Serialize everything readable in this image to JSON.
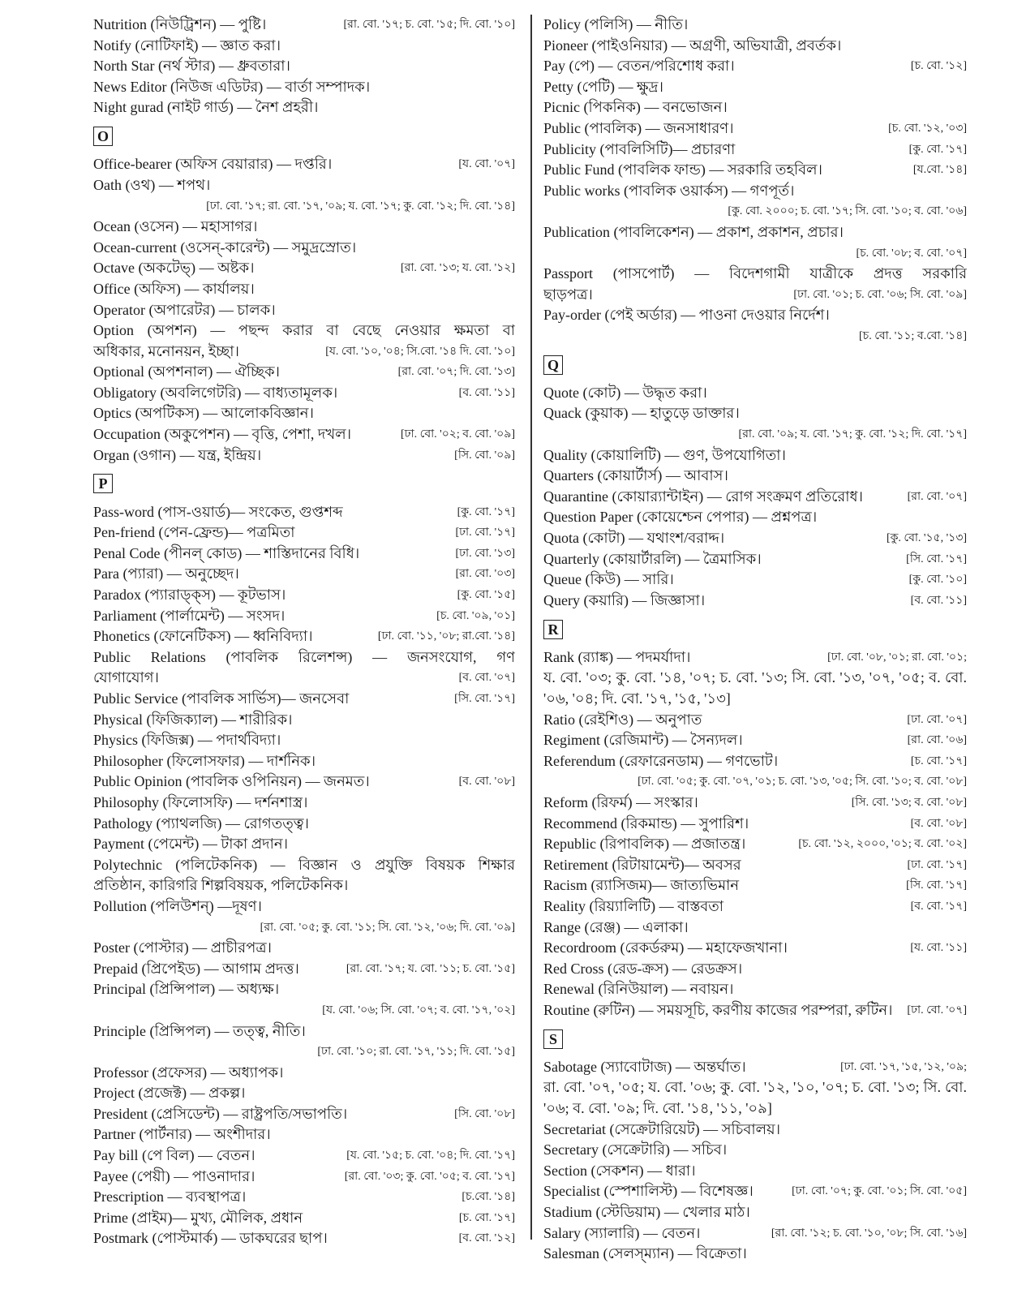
{
  "left_column": [
    {
      "type": "entry",
      "text": "Nutrition (নিউট্রিশন) — পুষ্টি।",
      "ref": "[রা. বো. '১৭; চ. বো. '১৫; দি. বো. '১০]"
    },
    {
      "type": "entry",
      "text": "Notify (নোটিফাই) — জ্ঞাত করা।"
    },
    {
      "type": "entry",
      "text": "North Star (নর্থ স্টার) — ধ্রুবতারা।"
    },
    {
      "type": "entry",
      "text": "News Editor (নিউজ এডিটর) — বার্তা সম্পাদক।"
    },
    {
      "type": "entry",
      "text": "Night gurad (নাইট গার্ড) — নৈশ প্রহরী।"
    },
    {
      "type": "header",
      "text": "O"
    },
    {
      "type": "entry",
      "text": "Office-bearer (অফিস বেয়ারার) — দপ্তরি।",
      "ref": "[য. বো. '০৭]"
    },
    {
      "type": "entry",
      "text": "Oath (ওথ) — শপথ।"
    },
    {
      "type": "ref",
      "ref": "[ঢা. বো. '১৭; রা. বো. '১৭, '০৯; য. বো. '১৭; কু. বো. '১২; দি. বো. '১৪]"
    },
    {
      "type": "entry",
      "text": "Ocean (ওসেন) — মহাসাগর।"
    },
    {
      "type": "entry",
      "text": "Ocean-current (ওসেন্‌-কারেন্ট) — সমুদ্রস্রোত।"
    },
    {
      "type": "entry",
      "text": "Octave (অকটেভ্‌) — অষ্টক।",
      "ref": "[রা. বো. '১৩; য. বো. '১২]"
    },
    {
      "type": "entry",
      "text": "Office (অফিস) — কার্যালয়।"
    },
    {
      "type": "entry",
      "text": "Operator (অপারেটর) — চালক।"
    },
    {
      "type": "justify",
      "text": "Option (অপশন) — পছন্দ করার বা বেছে নেওয়ার ক্ষমতা বা"
    },
    {
      "type": "entry",
      "text": "অধিকার, মনোনয়ন, ইচ্ছা।",
      "ref": "[য. বো. '১০, '০৪; সি.বো. '১৪ দি. বো. '১০]"
    },
    {
      "type": "entry",
      "text": "Optional (অপশনাল) — ঐচ্ছিক।",
      "ref": "[রা. বো. '০৭; দি. বো. '১৩]"
    },
    {
      "type": "entry",
      "text": "Obligatory (অবলিগেটরি) — বাধ্যতামূলক।",
      "ref": "[ব. বো. '১১]"
    },
    {
      "type": "entry",
      "text": "Optics (অপটিকস) — আলোকবিজ্ঞান।"
    },
    {
      "type": "entry",
      "text": "Occupation (অকুপেশন) — বৃত্তি, পেশা, দখল।",
      "ref": "[ঢা. বো. '০২; ব. বো. '০৯]"
    },
    {
      "type": "entry",
      "text": "Organ (ওগান) — যন্ত্র, ইন্দ্রিয়।",
      "ref": "[সি. বো. '০৯]"
    },
    {
      "type": "header",
      "text": "P"
    },
    {
      "type": "entry",
      "text": "Pass-word (পাস-ওয়ার্ড)— সংকেত, গুপ্তশব্দ",
      "ref": "[কু. বো. '১৭]"
    },
    {
      "type": "entry",
      "text": "Pen-friend (পেন-ফ্রেন্ড)— পত্রমিতা",
      "ref": "[ঢা. বো. '১৭]"
    },
    {
      "type": "entry",
      "text": "Penal Code (পীনল্‌ কোড) — শাস্তিদানের বিধি।",
      "ref": "[ঢা. বো. '১৩]"
    },
    {
      "type": "entry",
      "text": "Para (প্যারা) — অনুচ্ছেদ।",
      "ref": "[রা. বো. '০৩]"
    },
    {
      "type": "entry",
      "text": "Paradox (প্যারাড্‌ক্‌স) — কূটভাস।",
      "ref": "[কু. বো. '১৫]"
    },
    {
      "type": "entry",
      "text": "Parliament (পার্লামেন্ট) — সংসদ।",
      "ref": "[চ. বো. '০৯, '০১]"
    },
    {
      "type": "entry",
      "text": "Phonetics (ফোনেটিকস) — ধ্বনিবিদ্যা।",
      "ref": "[ঢা. বো. '১১, '০৮; রা.বো. '১৪]"
    },
    {
      "type": "justify",
      "text": "Public Relations (পাবলিক রিলেশন্স) — জনসংযোগ, গণ"
    },
    {
      "type": "entry",
      "text": "যোগাযোগ।",
      "ref": "[ব. বো. '০৭]"
    },
    {
      "type": "entry",
      "text": "Public Service (পাবলিক সার্ভিস)— জনসেবা",
      "ref": "[সি. বো. '১৭]"
    },
    {
      "type": "entry",
      "text": "Physical (ফিজিক্যাল) — শারীরিক।"
    },
    {
      "type": "entry",
      "text": "Physics (ফিজিক্স) — পদার্থবিদ্যা।"
    },
    {
      "type": "entry",
      "text": "Philosopher (ফিলোসফার) — দার্শনিক।"
    },
    {
      "type": "entry",
      "text": "Public Opinion (পাবলিক ওপিনিয়ন) — জনমত।",
      "ref": "[ব. বো. '০৮]"
    },
    {
      "type": "entry",
      "text": "Philosophy (ফিলোসফি) — দর্শনশাস্ত্র।"
    },
    {
      "type": "entry",
      "text": "Pathology (প্যাথলজি) — রোগতত্ত্ব।"
    },
    {
      "type": "entry",
      "text": "Payment (পেমেন্ট) — টাকা প্রদান।"
    },
    {
      "type": "justify",
      "text": "Polytechnic (পলিটেকনিক) — বিজ্ঞান ও প্রযুক্তি বিষয়ক শিক্ষার"
    },
    {
      "type": "entry",
      "text": "প্রতিষ্ঠান, কারিগরি শিল্পবিষয়ক, পলিটেকনিক।"
    },
    {
      "type": "entry",
      "text": "Pollution (পলিউশন্‌) —দূষণ।"
    },
    {
      "type": "ref",
      "ref": "[রা. বো. '০৫; কু. বো. '১১; সি. বো. '১২, '০৬; দি. বো. '০৯]"
    },
    {
      "type": "entry",
      "text": "Poster (পোস্টার) — প্রাচীরপত্র।"
    },
    {
      "type": "entry",
      "text": "Prepaid (প্রিপেইড) — আগাম প্রদত্ত।",
      "ref": "[রা. বো. '১৭; য. বো. '১১; চ. বো. '১৫]"
    },
    {
      "type": "entry",
      "text": "Principal (প্রিন্সিপাল) — অধ্যক্ষ।"
    },
    {
      "type": "ref",
      "ref": "[য. বো. '০৬; সি. বো. '০৭; ব. বো. '১৭, '০২]"
    },
    {
      "type": "entry",
      "text": "Principle (প্রিন্সিপল) — তত্ত্ব, নীতি।"
    },
    {
      "type": "ref",
      "ref": "[ঢা. বো. '১০; রা. বো. '১৭, '১১; দি. বো. '১৫]"
    },
    {
      "type": "entry",
      "text": "Professor (প্রফেসর) — অধ্যাপক।"
    },
    {
      "type": "entry",
      "text": "Project (প্রজেক্ট) — প্রকল্প।"
    },
    {
      "type": "entry",
      "text": "President (প্রেসিডেন্ট) — রাষ্ট্রপতি/সভাপতি।",
      "ref": "[সি. বো. '০৮]"
    },
    {
      "type": "entry",
      "text": "Partner (পার্টনার) — অংশীদার।"
    },
    {
      "type": "entry",
      "text": "Pay bill (পে বিল) — বেতন।",
      "ref": "[য. বো. '১৫; চ. বো. '০৪; দি. বো. '১৭]"
    },
    {
      "type": "entry",
      "text": "Payee (পেয়ী) — পাওনাদার।",
      "ref": "[রা. বো. '০৩; কু. বো. '০৫; ব. বো. '১৭]"
    },
    {
      "type": "entry",
      "text": "Prescription — ব্যবস্থাপত্র।",
      "ref": "[চ.বো. '১৪]"
    },
    {
      "type": "entry",
      "text": "Prime (প্রাইম)— মুখ্য, মৌলিক, প্রধান",
      "ref": "[চ. বো. '১৭]"
    },
    {
      "type": "entry",
      "text": "Postmark (পোস্টমার্ক) — ডাকঘরের ছাপ।",
      "ref": "[ব. বো. '১২]"
    }
  ],
  "right_column": [
    {
      "type": "entry",
      "text": "Policy (পলিসি) — নীতি।"
    },
    {
      "type": "entry",
      "text": "Pioneer (পাইওনিয়ার) — অগ্রণী, অভিযাত্রী, প্রবর্তক।"
    },
    {
      "type": "entry",
      "text": "Pay (পে) — বেতন/পরিশোধ করা।",
      "ref": "[চ. বো. '১২]"
    },
    {
      "type": "entry",
      "text": "Petty (পেটি) — ক্ষুদ্র।"
    },
    {
      "type": "entry",
      "text": "Picnic (পিকনিক) — বনভোজন।"
    },
    {
      "type": "entry",
      "text": "Public (পাবলিক) — জনসাধারণ।",
      "ref": "[চ. বো. '১২, '০৩]"
    },
    {
      "type": "entry",
      "text": "Publicity (পাবলিসিটি)— প্রচারণা",
      "ref": "[কু. বো. '১৭]"
    },
    {
      "type": "entry",
      "text": "Public Fund (পাবলিক ফান্ড) — সরকারি তহবিল।",
      "ref": "[য.বো. '১৪]"
    },
    {
      "type": "entry",
      "text": "Public works (পাবলিক ওয়ার্কস) — গণপূর্ত।"
    },
    {
      "type": "ref",
      "ref": "[কু. বো. ২০০০; চ. বো. '১৭; সি. বো. '১০; ব. বো. '০৬]"
    },
    {
      "type": "entry",
      "text": "Publication (পাবলিকেশন) — প্রকাশ, প্রকাশন, প্রচার।"
    },
    {
      "type": "ref",
      "ref": "[চ. বো. '০৮; ব. বো. '০৭]"
    },
    {
      "type": "justify",
      "text": "Passport (পাসপোর্ট) — বিদেশগামী যাত্রীকে প্রদত্ত সরকারি"
    },
    {
      "type": "entry",
      "text": "ছাড়পত্র।",
      "ref": "[ঢা. বো. '০১; চ. বো. '০৬; সি. বো. '০৯]"
    },
    {
      "type": "entry",
      "text": "Pay-order (পেই অর্ডার) — পাওনা দেওয়ার নির্দেশ।"
    },
    {
      "type": "ref",
      "ref": "[চ. বো. '১১; ব.বো. '১৪]"
    },
    {
      "type": "header",
      "text": "Q"
    },
    {
      "type": "entry",
      "text": "Quote (কোট) — উদ্ধৃত করা।"
    },
    {
      "type": "entry",
      "text": "Quack (কুয়াক) — হাতুড়ে ডাক্তার।"
    },
    {
      "type": "ref",
      "ref": "[রা. বো. '০৯; য. বো. '১৭; কু. বো. '১২; দি. বো. '১৭]"
    },
    {
      "type": "entry",
      "text": "Quality (কোয়ালিটি) — গুণ, উপযোগিতা।"
    },
    {
      "type": "entry",
      "text": "Quarters (কোয়ার্টার্স) — আবাস।"
    },
    {
      "type": "entry",
      "text": "Quarantine (কোয়ার‍্যান্টাইন) — রোগ সংক্রমণ প্রতিরোধ।",
      "ref": "[রা. বো. '০৭]"
    },
    {
      "type": "entry",
      "text": "Question Paper (কোয়েশ্চেন পেপার) — প্রশ্নপত্র।"
    },
    {
      "type": "entry",
      "text": "Quota (কোটা) — যথাংশ/বরাদ্দ।",
      "ref": "[কু. বো. '১৫, '১৩]"
    },
    {
      "type": "entry",
      "text": "Quarterly (কোয়ার্টারলি) — ত্রৈমাসিক।",
      "ref": "[সি. বো. '১৭]"
    },
    {
      "type": "entry",
      "text": "Queue (কিউ) — সারি।",
      "ref": "[কু. বো. '১০]"
    },
    {
      "type": "entry",
      "text": "Query (কয়ারি) — জিজ্ঞাসা।",
      "ref": "[ব. বো. '১১]"
    },
    {
      "type": "header",
      "text": "R"
    },
    {
      "type": "entry",
      "text": "Rank (র‍্যাঙ্ক) — পদমর্যাদা।",
      "ref": "[ঢা. বো. '০৮, '০১; রা. বো. '০১;"
    },
    {
      "type": "justify",
      "text": "য. বো. '০৩; কু. বো. '১৪, '০৭; চ. বো. '১৩; সি. বো. '১৩, '০৭, '০৫; ব. বো."
    },
    {
      "type": "entry",
      "text": "'০৬, '০৪; দি. বো. '১৭, '১৫, '১৩]"
    },
    {
      "type": "entry",
      "text": "Ratio (রেইশিও) — অনুপাত",
      "ref": "[ঢা. বো. '০৭]"
    },
    {
      "type": "entry",
      "text": "Regiment (রেজিমান্ট) — সৈন্যদল।",
      "ref": "[রা. বো. '০৬]"
    },
    {
      "type": "entry",
      "text": "Referendum (রেফারেনডাম) — গণভোট।",
      "ref": "[চ. বো. '১৭]"
    },
    {
      "type": "ref",
      "ref": "[ঢা. বো. '০৫; কু. বো. '০৭, '০১; চ. বো. '১৩, '০৫; সি. বো. '১০; ব. বো. '০৮]"
    },
    {
      "type": "entry",
      "text": "Reform (রিফর্ম) — সংস্কার।",
      "ref": "[সি. বো. '১৩; ব. বো. '০৮]"
    },
    {
      "type": "entry",
      "text": "Recommend (রিকমান্ড) — সুপারিশ।",
      "ref": "[ব. বো. '০৮]"
    },
    {
      "type": "entry",
      "text": "Republic (রিপাবলিক) — প্রজাতন্ত্র।",
      "ref": "[চ. বো. '১২, ২০০০, '০১; ব. বো. '০২]"
    },
    {
      "type": "entry",
      "text": "Retirement (রিটায়ামেন্ট)— অবসর",
      "ref": "[ঢা. বো. '১৭]"
    },
    {
      "type": "entry",
      "text": "Racism (র‍্যাসিজম)— জাত্যভিমান",
      "ref": "[সি. বো. '১৭]"
    },
    {
      "type": "entry",
      "text": "Reality (রিয়্যালিটি) — বাস্তবতা",
      "ref": "[ব. বো. '১৭]"
    },
    {
      "type": "entry",
      "text": "Range (রেঞ্জ) — এলাকা।"
    },
    {
      "type": "entry",
      "text": "Recordroom (রেকর্ডরুম) — মহাফেজখানা।",
      "ref": "[য. বো. '১১]"
    },
    {
      "type": "entry",
      "text": "Red Cross (রেড-ক্রস) — রেডক্রস।"
    },
    {
      "type": "entry",
      "text": "Renewal (রিনিউয়াল) — নবায়ন।"
    },
    {
      "type": "entry",
      "text": "Routine (রুটিন) — সময়সূচি, করণীয় কাজের পরম্পরা, রুটিন।",
      "ref": "[ঢা. বো. '০৭]"
    },
    {
      "type": "header",
      "text": "S"
    },
    {
      "type": "entry",
      "text": "Sabotage (স্যাবোটাজ) — অন্তর্ঘাত।",
      "ref": "[ঢা. বো. '১৭, '১৫, '১২, '০৯;"
    },
    {
      "type": "justify",
      "text": "রা. বো. '০৭, '০৫; য. বো. '০৬; কু. বো. '১২, '১০, '০৭; চ. বো. '১৩; সি. বো."
    },
    {
      "type": "entry",
      "text": "'০৬; ব. বো. '০৯; দি. বো. '১৪, '১১, '০৯]"
    },
    {
      "type": "entry",
      "text": "Secretariat (সেক্রেটারিয়েট) — সচিবালয়।"
    },
    {
      "type": "entry",
      "text": "Secretary (সেক্রেটারি) — সচিব।"
    },
    {
      "type": "entry",
      "text": "Section (সেকশন) — ধারা।"
    },
    {
      "type": "entry",
      "text": "Specialist (স্পেশালিস্ট) — বিশেষজ্ঞ।",
      "ref": "[ঢা. বো. '০৭; কু. বো. '০১; সি. বো. '০৫]"
    },
    {
      "type": "entry",
      "text": "Stadium (স্টেডিয়াম) — খেলার মাঠ।"
    },
    {
      "type": "entry",
      "text": "Salary (স্যালারি) — বেতন।",
      "ref": "[রা. বো. '১২; চ. বো. '১০, '০৮; সি. বো. '১৬]"
    },
    {
      "type": "entry",
      "text": "Salesman (সেলস্‌ম্যান) — বিক্রেতা।"
    }
  ]
}
